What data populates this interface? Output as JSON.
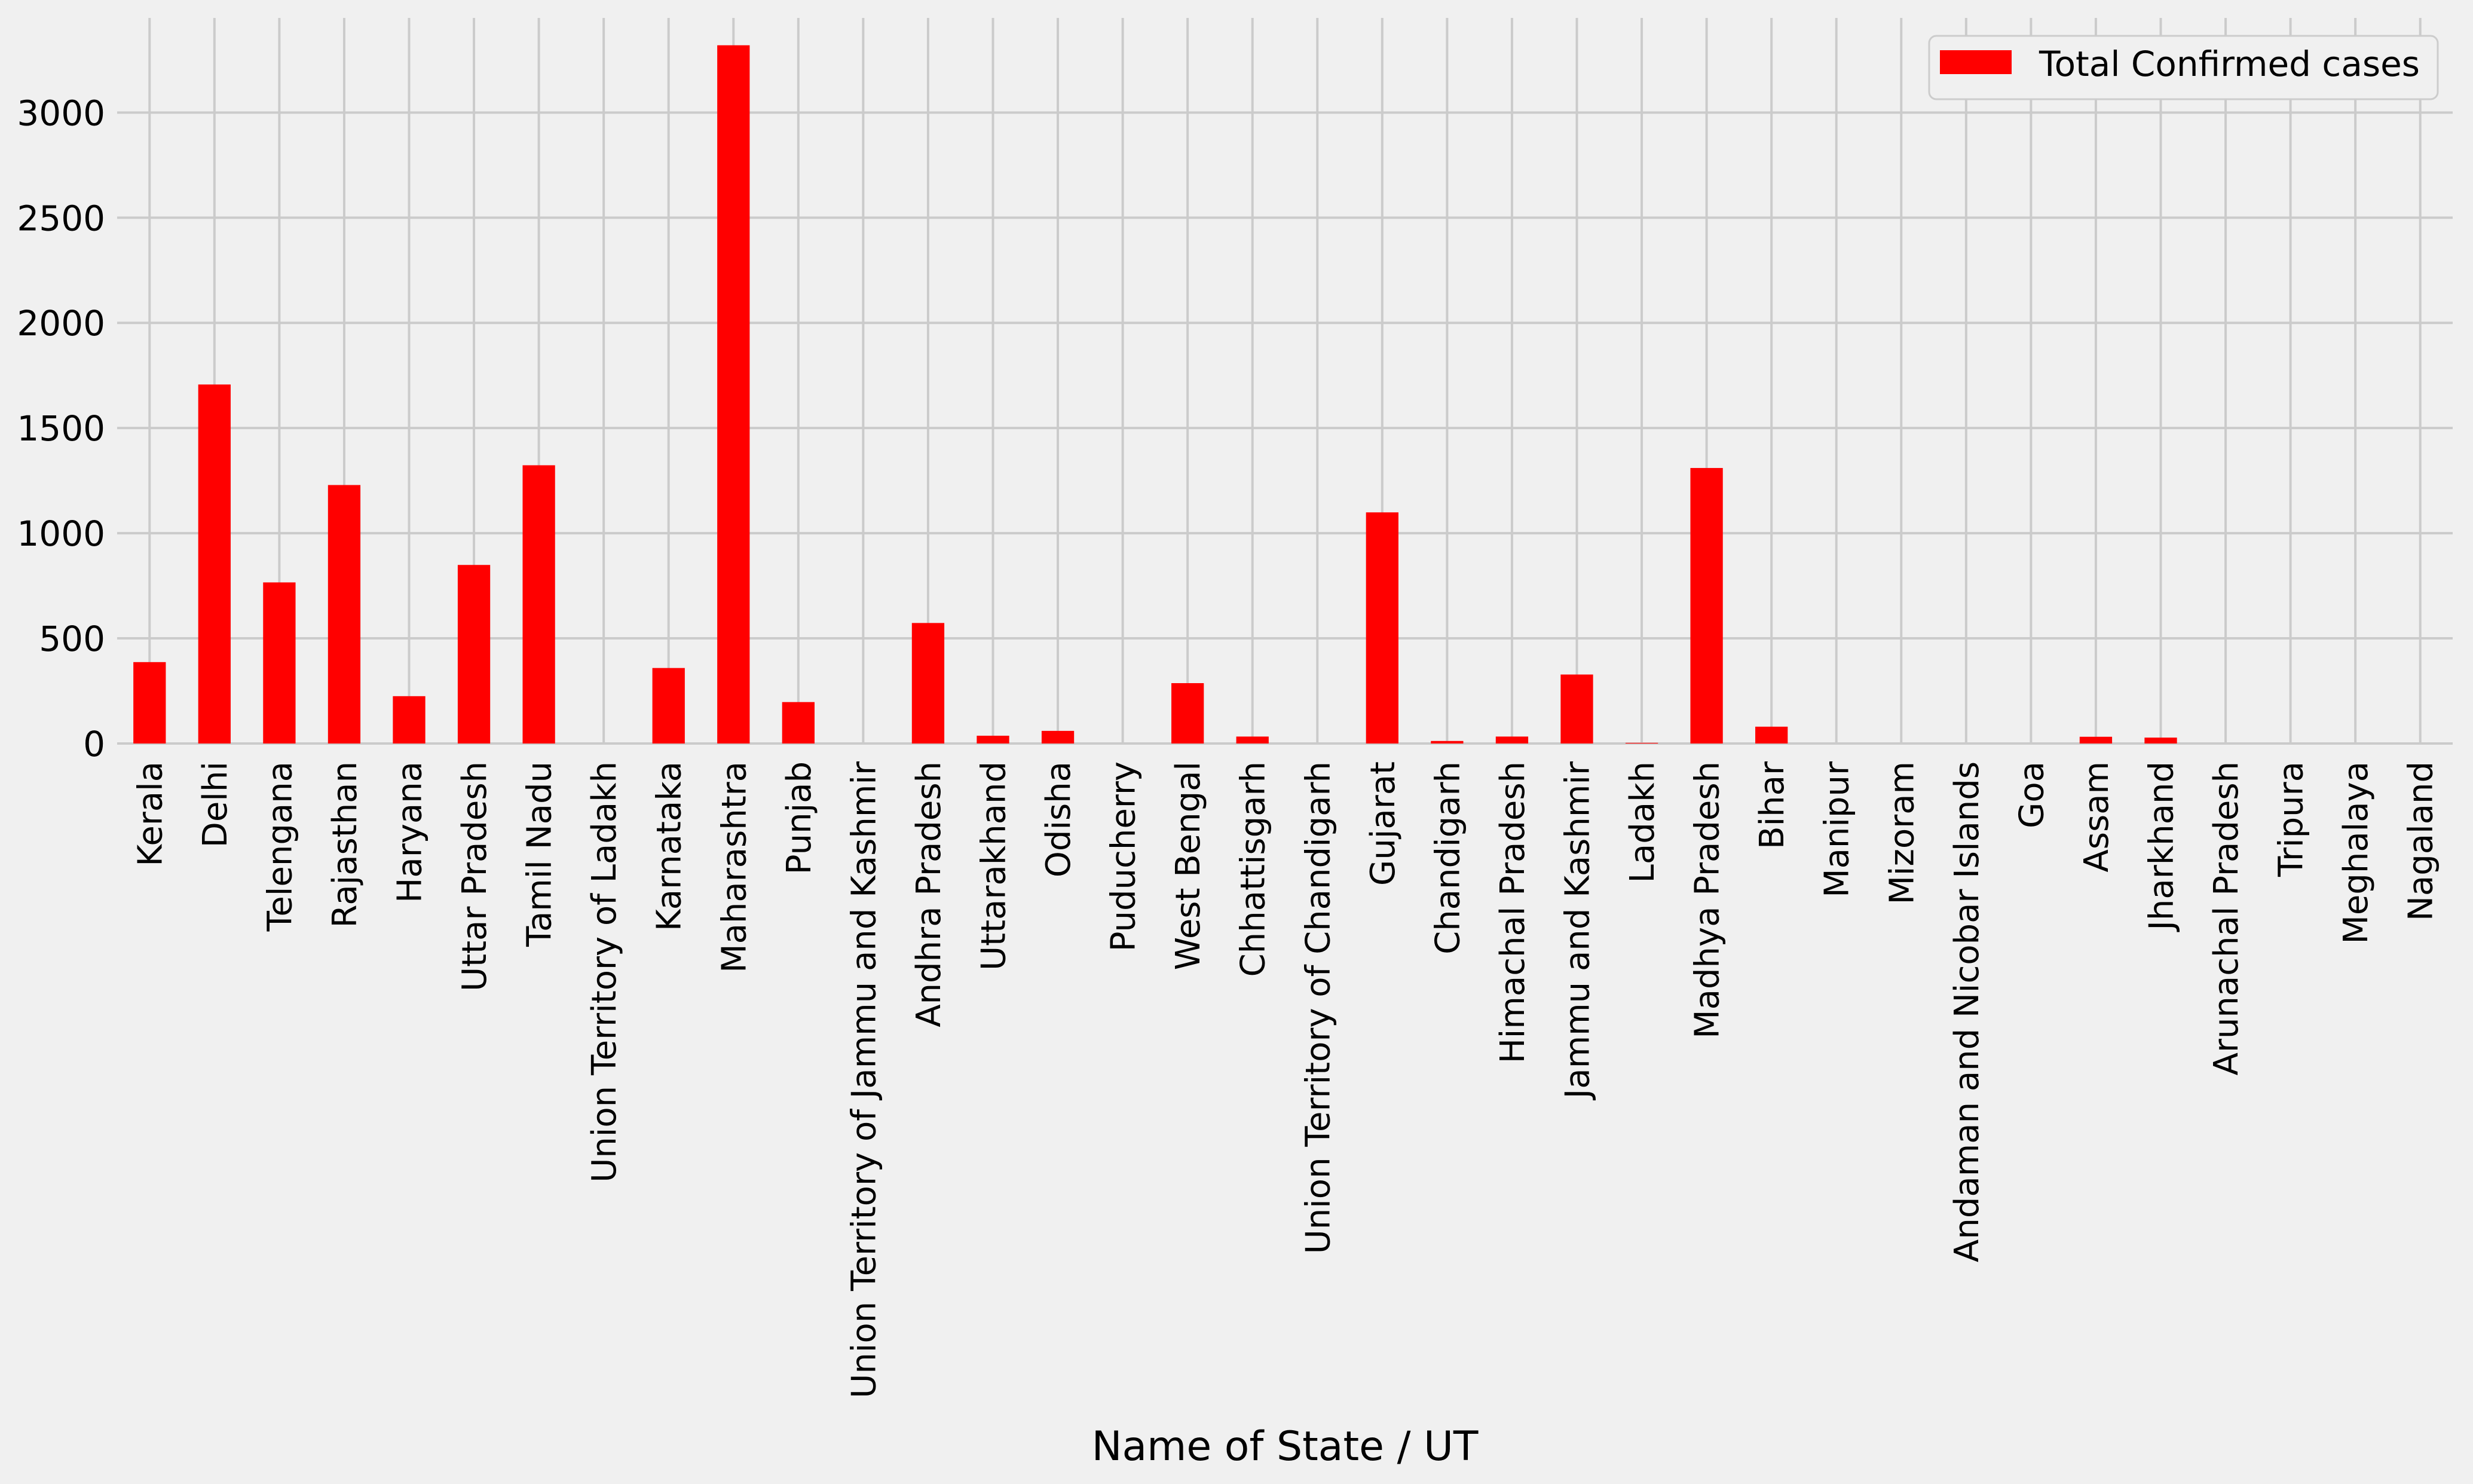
{
  "chart_data": {
    "type": "bar",
    "title": "",
    "xlabel": "Name of State / UT",
    "ylabel": "",
    "ylim": [
      0,
      3450
    ],
    "yticks": [
      0,
      500,
      1000,
      1500,
      2000,
      2500,
      3000
    ],
    "grid": true,
    "legend_position": "top-right",
    "categories": [
      "Kerala",
      "Delhi",
      "Telengana",
      "Rajasthan",
      "Haryana",
      "Uttar Pradesh",
      "Tamil Nadu",
      "Union Territory of Ladakh",
      "Karnataka",
      "Maharashtra",
      "Punjab",
      "Union Territory of Jammu and Kashmir",
      "Andhra Pradesh",
      "Uttarakhand",
      "Odisha",
      "Puducherry",
      "West Bengal",
      "Chhattisgarh",
      "Union Territory of Chandigarh",
      "Gujarat",
      "Chandigarh",
      "Himachal Pradesh",
      "Jammu and Kashmir",
      "Ladakh",
      "Madhya Pradesh",
      "Bihar",
      "Manipur",
      "Mizoram",
      "Andaman and Nicobar Islands",
      "Goa",
      "Assam",
      "Jharkhand",
      "Arunachal Pradesh",
      "Tripura",
      "Meghalaya",
      "Nagaland"
    ],
    "series": [
      {
        "name": "Total Confirmed cases",
        "color": "#ff0000",
        "values": [
          387,
          1707,
          766,
          1229,
          225,
          849,
          1323,
          0,
          359,
          3320,
          197,
          0,
          573,
          37,
          60,
          0,
          287,
          33,
          0,
          1099,
          12,
          33,
          328,
          3,
          1310,
          80,
          0,
          0,
          0,
          0,
          32,
          28,
          0,
          0,
          0,
          0
        ]
      }
    ]
  },
  "colors": {
    "background": "#f0f0f0",
    "grid": "#cbcbcb",
    "text": "#000000"
  }
}
